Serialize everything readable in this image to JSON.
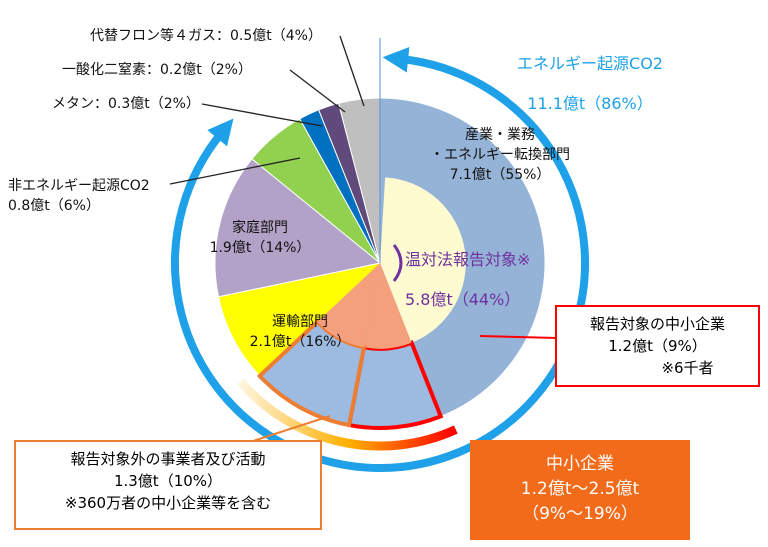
{
  "chart_data": {
    "type": "pie",
    "categories": [
      "産業・業務\n・エネルギー転換部門",
      "運輸部門",
      "家庭部門",
      "非エネルギー起源CO2",
      "メタン：",
      "一酸化二窒素：",
      "代替フロン等４ガス："
    ],
    "values": [
      55,
      16,
      14,
      6,
      2,
      2,
      4
    ],
    "value_labels": [
      "7.1億t（55%）",
      "2.1億t（16%）",
      "1.9億t（14%）",
      "0.8億t（6%）",
      "0.3億t（2%）",
      "0.2億t（2%）",
      "0.5億t（4%）"
    ],
    "colors": [
      "#95b3d7",
      "#ffff00",
      "#b3a2c7",
      "#92d050",
      "#0070c0",
      "#604a7b",
      "#bfbfbf"
    ],
    "callouts": [
      {
        "title": "エネルギー起源CO2",
        "value": 86,
        "value_label": "11.1億t（86%）",
        "color": "#1ea1e8"
      },
      {
        "title": "温対法報告対象※",
        "value": 44,
        "value_label": "5.8億t（44%）",
        "color": "#7030a0"
      },
      {
        "title": "報告対象の中小企業",
        "value": 9,
        "value_label": "1.2億t（9%）",
        "note": "※6千者",
        "color": "#ff0000"
      },
      {
        "title": "報告対象外の事業者及び活動",
        "value": 10,
        "value_label": "1.3億t（10%）",
        "note": "※360万者の中小企業等を含む",
        "color": "#ed7d31"
      },
      {
        "title": "中小企業",
        "value_label": "1.2億t～2.5億t",
        "note": "（9%～19%）",
        "color": "#f26b1a"
      }
    ]
  }
}
